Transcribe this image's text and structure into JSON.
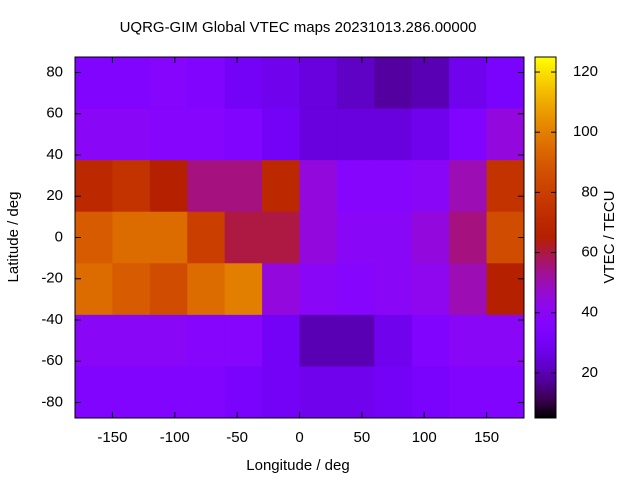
{
  "chart_data": {
    "type": "heatmap",
    "title": "UQRG-GIM Global VTEC maps 20231013.286.00000",
    "x_label": "Longitude / deg",
    "y_label": "Latitude / deg",
    "colorbar_label": "VTEC / TECU",
    "x": [
      -165,
      -135,
      -105,
      -75,
      -45,
      -15,
      15,
      45,
      75,
      105,
      135,
      165
    ],
    "y": [
      75,
      50,
      25,
      0,
      -25,
      -50,
      -75
    ],
    "z": [
      [
        35,
        35,
        38,
        35,
        30,
        28,
        25,
        22,
        18,
        20,
        28,
        32
      ],
      [
        40,
        40,
        38,
        38,
        35,
        30,
        25,
        25,
        25,
        28,
        35,
        45
      ],
      [
        70,
        75,
        65,
        55,
        55,
        70,
        45,
        38,
        38,
        40,
        50,
        75
      ],
      [
        90,
        95,
        95,
        80,
        60,
        60,
        45,
        40,
        40,
        45,
        55,
        85
      ],
      [
        95,
        90,
        85,
        95,
        100,
        45,
        40,
        38,
        40,
        42,
        50,
        65
      ],
      [
        40,
        40,
        40,
        38,
        38,
        30,
        20,
        20,
        28,
        35,
        40,
        40
      ],
      [
        35,
        35,
        35,
        35,
        32,
        30,
        28,
        28,
        30,
        32,
        35,
        35
      ]
    ],
    "xlim": [
      -180,
      180
    ],
    "ylim": [
      -87.5,
      87.5
    ],
    "zlim": [
      5,
      125
    ],
    "xticks": [
      -150,
      -100,
      -50,
      0,
      50,
      100,
      150
    ],
    "yticks": [
      -80,
      -60,
      -40,
      -20,
      0,
      20,
      40,
      60,
      80
    ],
    "zticks": [
      20,
      40,
      60,
      80,
      100,
      120
    ]
  }
}
